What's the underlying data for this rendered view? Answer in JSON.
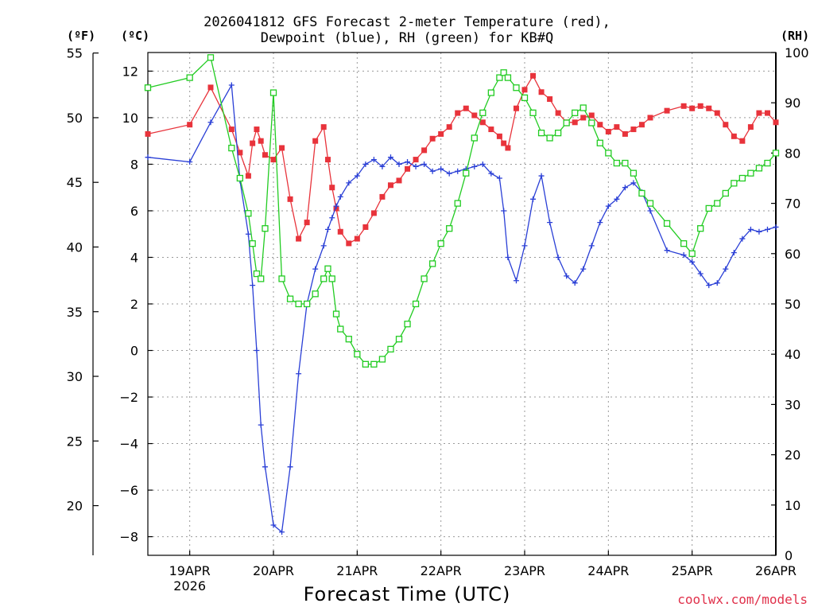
{
  "title_line1": "2026041812 GFS Forecast 2-meter Temperature (red),",
  "title_line2": "Dewpoint (blue), RH (green) for KB#Q",
  "unit_f": "(ºF)",
  "unit_c": "(ºC)",
  "unit_rh": "(RH)",
  "credit": "coolwx.com/models",
  "colors": {
    "temperature": "#e8333b",
    "dewpoint": "#2a3fd6",
    "rh": "#22cc22",
    "grid": "#9a9a9a"
  },
  "chart_data": {
    "type": "line",
    "title": "2026041812 GFS Forecast 2-meter Temperature (red), Dewpoint (blue), RH (green) for KB#Q",
    "xlabel": "Forecast Time (UTC)",
    "x_units": "days since 2026-04-18 12Z",
    "xlim": [
      0,
      7.5
    ],
    "x_ticks": [
      {
        "x": 0.5,
        "label": "19APR",
        "sublabel": "2026"
      },
      {
        "x": 1.5,
        "label": "20APR",
        "sublabel": ""
      },
      {
        "x": 2.5,
        "label": "21APR",
        "sublabel": ""
      },
      {
        "x": 3.5,
        "label": "22APR",
        "sublabel": ""
      },
      {
        "x": 4.5,
        "label": "23APR",
        "sublabel": ""
      },
      {
        "x": 5.5,
        "label": "24APR",
        "sublabel": ""
      },
      {
        "x": 6.5,
        "label": "25APR",
        "sublabel": ""
      },
      {
        "x": 7.5,
        "label": "26APR",
        "sublabel": ""
      }
    ],
    "y_celsius": {
      "ylim": [
        -8.8,
        12.8
      ],
      "ticks": [
        -8,
        -6,
        -4,
        -2,
        0,
        2,
        4,
        6,
        8,
        10,
        12
      ],
      "tick_labels": [
        "−8",
        "−6",
        "−4",
        "−2",
        "0",
        "2",
        "4",
        "6",
        "8",
        "10",
        "12"
      ]
    },
    "y_fahrenheit": {
      "ticks": [
        20,
        25,
        30,
        35,
        40,
        45,
        50,
        55
      ],
      "tick_labels": [
        "20",
        "25",
        "30",
        "35",
        "40",
        "45",
        "50",
        "55"
      ]
    },
    "y_rh": {
      "ylim": [
        0,
        100
      ],
      "ticks": [
        0,
        10,
        20,
        30,
        40,
        50,
        60,
        70,
        80,
        90,
        100
      ],
      "tick_labels": [
        "0",
        "10",
        "20",
        "30",
        "40",
        "50",
        "60",
        "70",
        "80",
        "90",
        "100"
      ]
    },
    "series": [
      {
        "name": "2-meter Temperature",
        "axis": "celsius",
        "marker": "filled-square",
        "color_key": "temperature",
        "x": [
          0,
          0.5,
          0.75,
          1.0,
          1.1,
          1.2,
          1.25,
          1.3,
          1.35,
          1.4,
          1.5,
          1.6,
          1.7,
          1.8,
          1.9,
          2.0,
          2.1,
          2.15,
          2.2,
          2.25,
          2.3,
          2.4,
          2.5,
          2.6,
          2.7,
          2.8,
          2.9,
          3.0,
          3.1,
          3.2,
          3.3,
          3.4,
          3.5,
          3.6,
          3.7,
          3.8,
          3.9,
          4.0,
          4.1,
          4.2,
          4.25,
          4.3,
          4.4,
          4.5,
          4.6,
          4.7,
          4.8,
          4.9,
          5.0,
          5.1,
          5.2,
          5.3,
          5.4,
          5.5,
          5.6,
          5.7,
          5.8,
          5.9,
          6.0,
          6.2,
          6.4,
          6.5,
          6.6,
          6.7,
          6.8,
          6.9,
          7.0,
          7.1,
          7.2,
          7.3,
          7.4,
          7.5
        ],
        "values": [
          9.3,
          9.7,
          11.3,
          9.5,
          8.5,
          7.5,
          8.9,
          9.5,
          9.0,
          8.4,
          8.2,
          8.7,
          6.5,
          4.8,
          5.5,
          9.0,
          9.6,
          8.2,
          7.0,
          6.1,
          5.1,
          4.6,
          4.8,
          5.3,
          5.9,
          6.6,
          7.1,
          7.3,
          7.8,
          8.2,
          8.6,
          9.1,
          9.3,
          9.6,
          10.2,
          10.4,
          10.1,
          9.8,
          9.5,
          9.2,
          8.9,
          8.7,
          10.4,
          11.2,
          11.8,
          11.1,
          10.8,
          10.2,
          9.8,
          9.8,
          10.0,
          10.1,
          9.7,
          9.4,
          9.6,
          9.3,
          9.5,
          9.7,
          10.0,
          10.3,
          10.5,
          10.4,
          10.5,
          10.4,
          10.2,
          9.7,
          9.2,
          9.0,
          9.6,
          10.2,
          10.2,
          9.8
        ]
      },
      {
        "name": "Dewpoint",
        "axis": "celsius",
        "marker": "plus",
        "color_key": "dewpoint",
        "x": [
          0,
          0.5,
          0.75,
          1.0,
          1.1,
          1.2,
          1.25,
          1.3,
          1.35,
          1.4,
          1.5,
          1.6,
          1.7,
          1.8,
          1.9,
          2.0,
          2.1,
          2.15,
          2.2,
          2.25,
          2.3,
          2.4,
          2.5,
          2.6,
          2.7,
          2.8,
          2.9,
          3.0,
          3.1,
          3.2,
          3.3,
          3.4,
          3.5,
          3.6,
          3.7,
          3.8,
          3.9,
          4.0,
          4.1,
          4.2,
          4.25,
          4.3,
          4.4,
          4.5,
          4.6,
          4.7,
          4.8,
          4.9,
          5.0,
          5.1,
          5.2,
          5.3,
          5.4,
          5.5,
          5.6,
          5.7,
          5.8,
          5.9,
          6.0,
          6.2,
          6.4,
          6.5,
          6.6,
          6.7,
          6.8,
          6.9,
          7.0,
          7.1,
          7.2,
          7.3,
          7.4,
          7.5
        ],
        "values": [
          8.3,
          8.1,
          9.8,
          11.4,
          7.3,
          5.0,
          2.8,
          0.0,
          -3.2,
          -5.0,
          -7.5,
          -7.8,
          -5.0,
          -1.0,
          2.0,
          3.5,
          4.5,
          5.2,
          5.7,
          6.2,
          6.6,
          7.2,
          7.5,
          8.0,
          8.2,
          7.9,
          8.3,
          8.0,
          8.1,
          7.9,
          8.0,
          7.7,
          7.8,
          7.6,
          7.7,
          7.8,
          7.9,
          8.0,
          7.6,
          7.4,
          6.0,
          4.0,
          3.0,
          4.5,
          6.5,
          7.5,
          5.5,
          4.0,
          3.2,
          2.9,
          3.5,
          4.5,
          5.5,
          6.2,
          6.5,
          7.0,
          7.2,
          6.8,
          6.0,
          4.3,
          4.1,
          3.8,
          3.3,
          2.8,
          2.9,
          3.5,
          4.2,
          4.8,
          5.2,
          5.1,
          5.2,
          5.3
        ]
      },
      {
        "name": "Relative Humidity",
        "axis": "rh",
        "marker": "open-square",
        "color_key": "rh",
        "x": [
          0,
          0.5,
          0.75,
          1.0,
          1.1,
          1.2,
          1.25,
          1.3,
          1.35,
          1.4,
          1.5,
          1.6,
          1.7,
          1.8,
          1.9,
          2.0,
          2.1,
          2.15,
          2.2,
          2.25,
          2.3,
          2.4,
          2.5,
          2.6,
          2.7,
          2.8,
          2.9,
          3.0,
          3.1,
          3.2,
          3.3,
          3.4,
          3.5,
          3.6,
          3.7,
          3.8,
          3.9,
          4.0,
          4.1,
          4.2,
          4.25,
          4.3,
          4.4,
          4.5,
          4.6,
          4.7,
          4.8,
          4.9,
          5.0,
          5.1,
          5.2,
          5.3,
          5.4,
          5.5,
          5.6,
          5.7,
          5.8,
          5.9,
          6.0,
          6.2,
          6.4,
          6.5,
          6.6,
          6.7,
          6.8,
          6.9,
          7.0,
          7.1,
          7.2,
          7.3,
          7.4,
          7.5
        ],
        "values": [
          93,
          95,
          99,
          81,
          75,
          68,
          62,
          56,
          55,
          65,
          92,
          55,
          51,
          50,
          50,
          52,
          55,
          57,
          55,
          48,
          45,
          43,
          40,
          38,
          38,
          39,
          41,
          43,
          46,
          50,
          55,
          58,
          62,
          65,
          70,
          76,
          83,
          88,
          92,
          95,
          96,
          95,
          93,
          91,
          88,
          84,
          83,
          84,
          86,
          88,
          89,
          86,
          82,
          80,
          78,
          78,
          76,
          72,
          70,
          66,
          62,
          60,
          65,
          69,
          70,
          72,
          74,
          75,
          76,
          77,
          78,
          80
        ]
      }
    ]
  }
}
